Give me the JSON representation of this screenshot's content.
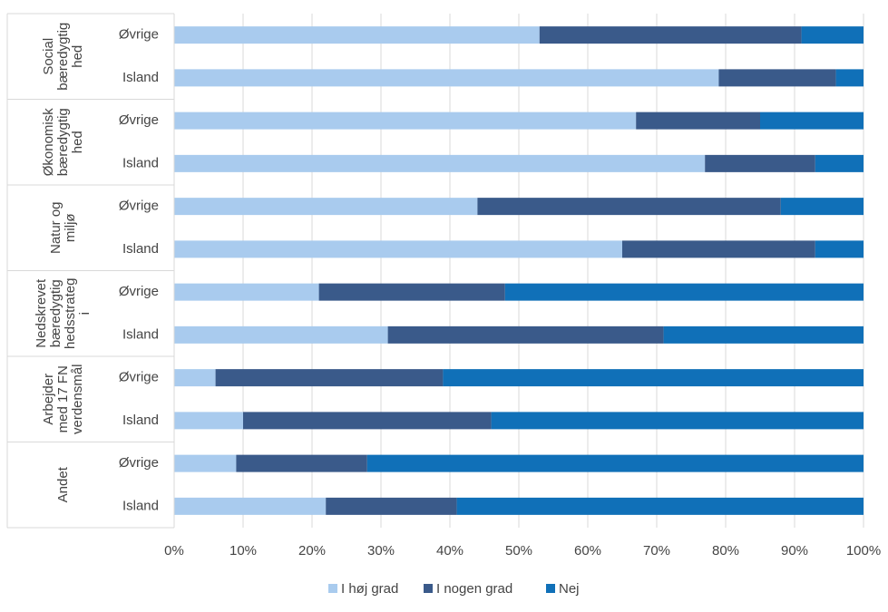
{
  "chart_data": {
    "type": "stacked_bar_horizontal",
    "groups": [
      {
        "lines": [
          "Social",
          "bæredygtig",
          "hed"
        ]
      },
      {
        "lines": [
          "Økonomisk",
          "bæredygtig",
          "hed"
        ]
      },
      {
        "lines": [
          "Natur og",
          "miljø"
        ]
      },
      {
        "lines": [
          "Nedskrevet",
          "bæredygtig",
          "hedsstrateg",
          "i"
        ]
      },
      {
        "lines": [
          "Arbejder",
          "med 17 FN",
          "verdensmål"
        ]
      },
      {
        "lines": [
          "Andet"
        ]
      }
    ],
    "categories": [
      "Øvrige",
      "Island",
      "Øvrige",
      "Island",
      "Øvrige",
      "Island",
      "Øvrige",
      "Island",
      "Øvrige",
      "Island",
      "Øvrige",
      "Island"
    ],
    "series": [
      {
        "name": "I høj grad",
        "color": "#a9cbee",
        "values": [
          53,
          79,
          67,
          77,
          44,
          65,
          21,
          31,
          6,
          10,
          9,
          22
        ]
      },
      {
        "name": "I nogen grad",
        "color": "#3a5a8a",
        "values": [
          38,
          17,
          18,
          16,
          44,
          28,
          27,
          40,
          33,
          36,
          19,
          19
        ]
      },
      {
        "name": "Nej",
        "color": "#1070b8",
        "values": [
          9,
          4,
          15,
          7,
          12,
          7,
          52,
          29,
          61,
          54,
          72,
          59
        ]
      }
    ],
    "xlim": [
      0,
      100
    ],
    "xticks": [
      {
        "value": 0,
        "label": "0%"
      },
      {
        "value": 10,
        "label": "10%"
      },
      {
        "value": 20,
        "label": "20%"
      },
      {
        "value": 30,
        "label": "30%"
      },
      {
        "value": 40,
        "label": "40%"
      },
      {
        "value": 50,
        "label": "50%"
      },
      {
        "value": 60,
        "label": "60%"
      },
      {
        "value": 70,
        "label": "70%"
      },
      {
        "value": 80,
        "label": "80%"
      },
      {
        "value": 90,
        "label": "90%"
      },
      {
        "value": 100,
        "label": "100%"
      }
    ],
    "grid": true,
    "legend": "bottom"
  }
}
